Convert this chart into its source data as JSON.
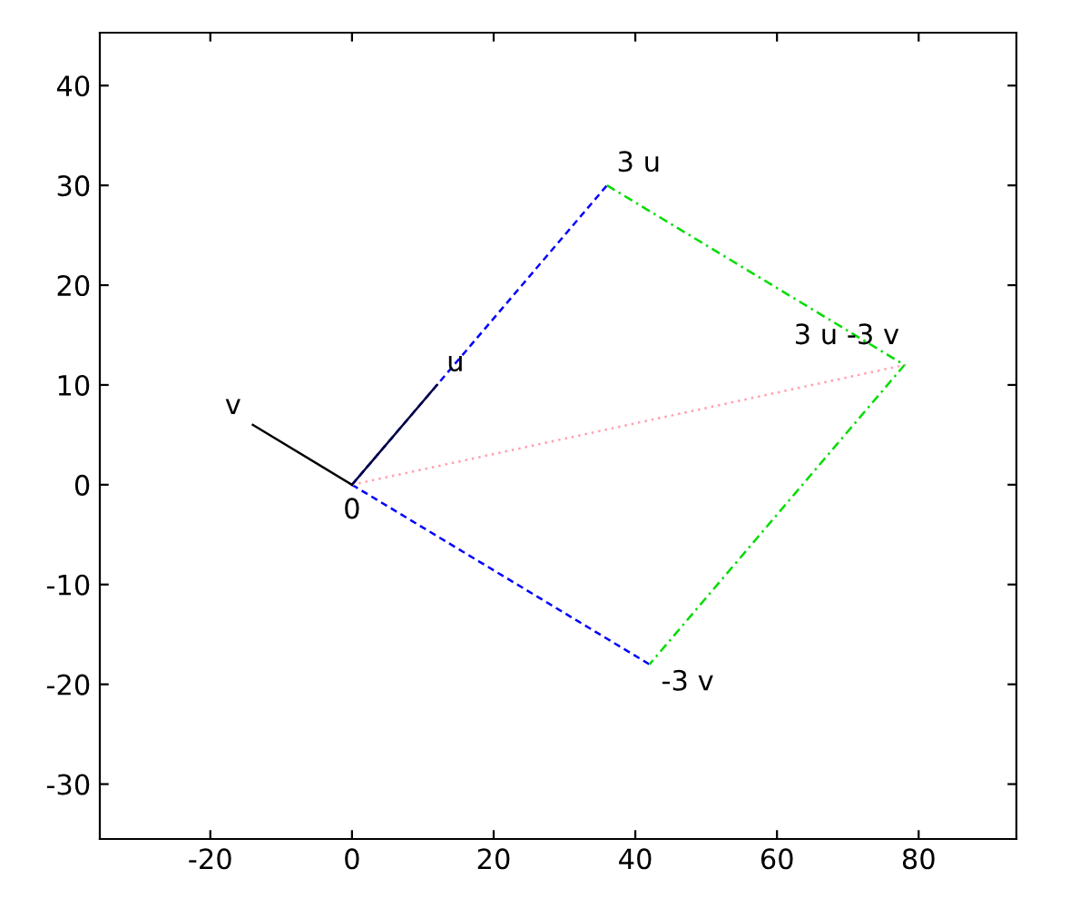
{
  "chart_data": {
    "type": "line",
    "xlim": [
      -35.6,
      93.8
    ],
    "ylim": [
      -35.5,
      45.3
    ],
    "xticks": [
      -20,
      0,
      20,
      40,
      60,
      80
    ],
    "yticks": [
      -30,
      -20,
      -10,
      0,
      10,
      20,
      30,
      40
    ],
    "grid": false,
    "legend": false,
    "marker": "none",
    "series": [
      {
        "x": [
          0,
          36
        ],
        "values": [
          0,
          30
        ],
        "color": "#0000ff",
        "line_style": "dashed"
      },
      {
        "x": [
          0,
          42
        ],
        "values": [
          0,
          -18
        ],
        "color": "#0000ff",
        "line_style": "dashed"
      },
      {
        "x": [
          36,
          78,
          42
        ],
        "values": [
          30,
          12,
          -18
        ],
        "color": "#00dd00",
        "line_style": "dashdot"
      },
      {
        "x": [
          0,
          78
        ],
        "values": [
          0,
          12
        ],
        "color": "#ffa0b0",
        "line_style": "dotted"
      },
      {
        "x": [
          0,
          12
        ],
        "values": [
          0,
          10
        ],
        "color": "#000040",
        "line_style": "solid"
      },
      {
        "x": [
          0,
          -14
        ],
        "values": [
          0,
          6
        ],
        "color": "#000000",
        "line_style": "solid"
      }
    ],
    "annotations": [
      {
        "text": "0",
        "x": 0,
        "y": 0
      },
      {
        "text": "u",
        "x": 12,
        "y": 10
      },
      {
        "text": "v",
        "x": -14,
        "y": 6
      },
      {
        "text": "3 u",
        "x": 36,
        "y": 30
      },
      {
        "text": "-3 v",
        "x": 42,
        "y": -18
      },
      {
        "text": "3 u -3 v",
        "x": 78,
        "y": 12
      }
    ]
  }
}
